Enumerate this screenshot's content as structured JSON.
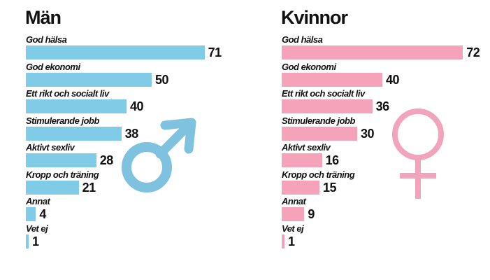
{
  "colors": {
    "men_bar": "#80cbe6",
    "women_bar": "#f5a2bb",
    "male_symbol": "#7ec2e0",
    "female_symbol": "#f2a4bd"
  },
  "icons": {
    "men": "male-symbol-icon",
    "women": "female-symbol-icon"
  },
  "panels": [
    {
      "title": "Män"
    },
    {
      "title": "Kvinnor"
    }
  ],
  "chart_data": [
    {
      "type": "bar",
      "title": "Män",
      "categories": [
        "God hälsa",
        "God ekonomi",
        "Ett rikt och socialt liv",
        "Stimulerande jobb",
        "Aktivt sexliv",
        "Kropp och träning",
        "Annat",
        "Vet ej"
      ],
      "values": [
        71,
        50,
        40,
        38,
        28,
        21,
        4,
        1
      ],
      "xlim": [
        0,
        72
      ],
      "grid": false
    },
    {
      "type": "bar",
      "title": "Kvinnor",
      "categories": [
        "God hälsa",
        "God ekonomi",
        "Ett rikt och socialt liv",
        "Stimulerande jobb",
        "Aktivt sexliv",
        "Kropp och träning",
        "Annat",
        "Vet ej"
      ],
      "values": [
        72,
        40,
        36,
        30,
        16,
        15,
        9,
        1
      ],
      "xlim": [
        0,
        72
      ],
      "grid": false
    }
  ]
}
